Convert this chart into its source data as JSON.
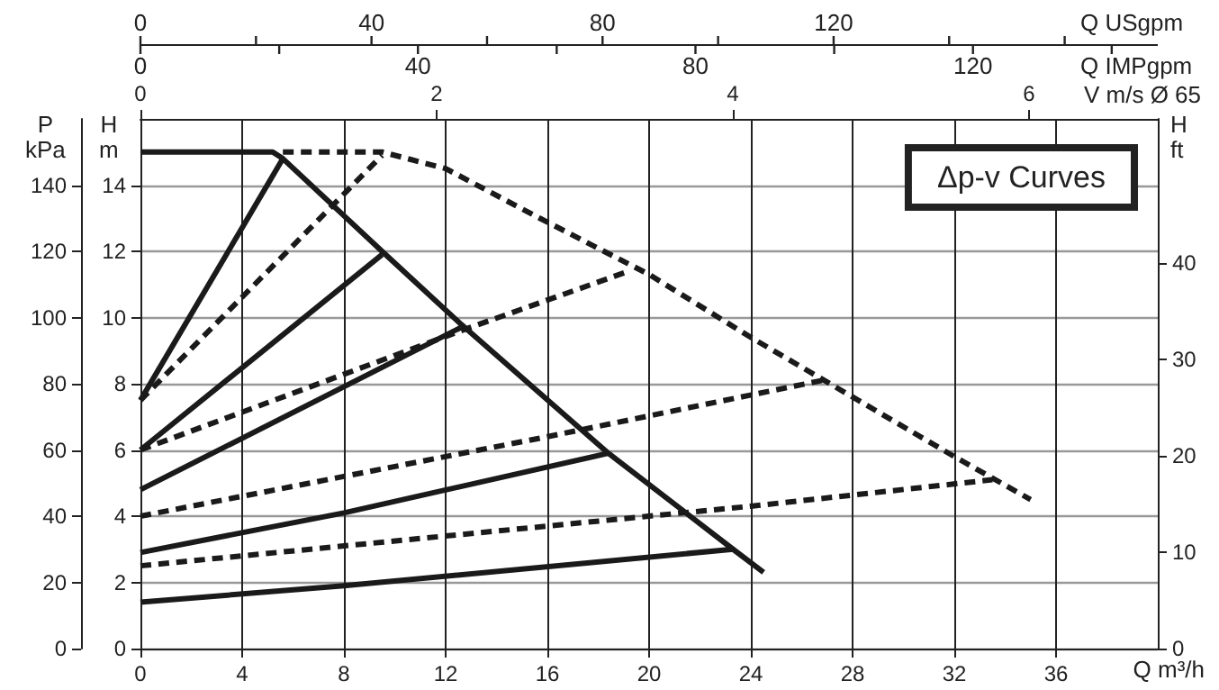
{
  "chart_data": {
    "type": "line",
    "xlabel": "Q m³/h",
    "ylabel": "H\nm",
    "y2label": "P\nkPa",
    "y3label": "H\nft",
    "x2label": "V m/s Ø 65",
    "annotations": [
      "Δp-v Curves",
      "0",
      "40",
      "80",
      "120",
      "Q USgpm",
      "0",
      "40",
      "80",
      "120",
      "Q IMPgpm"
    ],
    "xlim": [
      0,
      40
    ],
    "xticks": [
      0,
      4,
      8,
      12,
      16,
      20,
      24,
      28,
      32,
      36
    ],
    "ylim": [
      0,
      16
    ],
    "yticks": [
      0,
      2,
      4,
      6,
      8,
      10,
      12,
      14
    ],
    "y2lim": [
      0,
      160
    ],
    "y2ticks": [
      0,
      20,
      40,
      60,
      80,
      100,
      120,
      140
    ],
    "y3lim": [
      0,
      55
    ],
    "y3ticks": [
      0,
      10,
      20,
      30,
      40
    ],
    "x2lim": [
      0,
      6.87
    ],
    "x2ticks": [
      0,
      2,
      4,
      6
    ],
    "grid": true,
    "marker": "none",
    "series": [
      {
        "color": "#1a1a1a",
        "line_style": "solid",
        "x": [
          0,
          5.2,
          5.6,
          9.5,
          12.6,
          18.4,
          23.3,
          24.5
        ],
        "values": [
          15,
          15,
          14.8,
          12.0,
          9.8,
          5.9,
          3.0,
          2.3
        ]
      },
      {
        "color": "#1a1a1a",
        "line_style": "solid",
        "x": [
          0,
          5.6
        ],
        "values": [
          7.5,
          14.8
        ]
      },
      {
        "color": "#1a1a1a",
        "line_style": "solid",
        "x": [
          0,
          9.5
        ],
        "values": [
          6.0,
          11.9
        ]
      },
      {
        "color": "#1a1a1a",
        "line_style": "solid",
        "x": [
          0,
          12.6
        ],
        "values": [
          4.8,
          9.7
        ]
      },
      {
        "color": "#1a1a1a",
        "line_style": "solid",
        "x": [
          0,
          8,
          18.4
        ],
        "values": [
          2.9,
          4.1,
          5.9
        ]
      },
      {
        "color": "#1a1a1a",
        "line_style": "solid",
        "x": [
          0,
          8,
          23.3
        ],
        "values": [
          1.4,
          1.9,
          3.0
        ]
      },
      {
        "color": "#1a1a1a",
        "line_style": "dashed",
        "x": [
          5.6,
          9.5,
          12,
          15.7,
          20,
          24,
          28,
          32,
          35
        ],
        "values": [
          15,
          15,
          14.5,
          13.0,
          11.3,
          9.4,
          7.6,
          5.8,
          4.5
        ]
      },
      {
        "color": "#1a1a1a",
        "line_style": "dashed",
        "x": [
          0,
          9.5
        ],
        "values": [
          7.5,
          14.9
        ]
      },
      {
        "color": "#1a1a1a",
        "line_style": "dashed",
        "x": [
          0,
          12.6,
          19.2
        ],
        "values": [
          6.0,
          9.6,
          11.4
        ]
      },
      {
        "color": "#1a1a1a",
        "line_style": "dashed",
        "x": [
          0,
          8,
          16,
          26.8
        ],
        "values": [
          4.0,
          5.2,
          6.4,
          8.1
        ]
      },
      {
        "color": "#1a1a1a",
        "line_style": "dashed",
        "x": [
          0,
          8,
          16,
          24,
          33.5
        ],
        "values": [
          2.5,
          3.1,
          3.7,
          4.3,
          5.1
        ]
      }
    ]
  }
}
